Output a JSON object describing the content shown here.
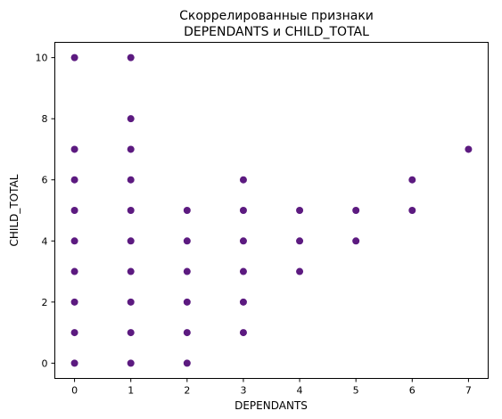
{
  "chart_data": {
    "type": "scatter",
    "title_line1": "Скоррелированные признаки",
    "title_line2": "DEPENDANTS и CHILD_TOTAL",
    "xlabel": "DEPENDANTS",
    "ylabel": "CHILD_TOTAL",
    "xlim": [
      -0.35,
      7.35
    ],
    "ylim": [
      -0.5,
      10.5
    ],
    "x_ticks": [
      0,
      1,
      2,
      3,
      4,
      5,
      6,
      7
    ],
    "y_ticks": [
      0,
      2,
      4,
      6,
      8,
      10
    ],
    "grid": false,
    "point_color": "#5c1a80",
    "points": [
      {
        "x": 0,
        "y": 0
      },
      {
        "x": 0,
        "y": 1
      },
      {
        "x": 0,
        "y": 2
      },
      {
        "x": 0,
        "y": 3
      },
      {
        "x": 0,
        "y": 4
      },
      {
        "x": 0,
        "y": 5
      },
      {
        "x": 0,
        "y": 6
      },
      {
        "x": 0,
        "y": 7
      },
      {
        "x": 0,
        "y": 10
      },
      {
        "x": 1,
        "y": 0
      },
      {
        "x": 1,
        "y": 1
      },
      {
        "x": 1,
        "y": 2
      },
      {
        "x": 1,
        "y": 3
      },
      {
        "x": 1,
        "y": 4
      },
      {
        "x": 1,
        "y": 5
      },
      {
        "x": 1,
        "y": 6
      },
      {
        "x": 1,
        "y": 7
      },
      {
        "x": 1,
        "y": 8
      },
      {
        "x": 1,
        "y": 10
      },
      {
        "x": 2,
        "y": 0
      },
      {
        "x": 2,
        "y": 1
      },
      {
        "x": 2,
        "y": 2
      },
      {
        "x": 2,
        "y": 3
      },
      {
        "x": 2,
        "y": 4
      },
      {
        "x": 2,
        "y": 5
      },
      {
        "x": 3,
        "y": 1
      },
      {
        "x": 3,
        "y": 2
      },
      {
        "x": 3,
        "y": 3
      },
      {
        "x": 3,
        "y": 4
      },
      {
        "x": 3,
        "y": 5
      },
      {
        "x": 3,
        "y": 6
      },
      {
        "x": 4,
        "y": 3
      },
      {
        "x": 4,
        "y": 4
      },
      {
        "x": 4,
        "y": 5
      },
      {
        "x": 5,
        "y": 4
      },
      {
        "x": 5,
        "y": 5
      },
      {
        "x": 6,
        "y": 5
      },
      {
        "x": 6,
        "y": 6
      },
      {
        "x": 7,
        "y": 7
      }
    ]
  }
}
